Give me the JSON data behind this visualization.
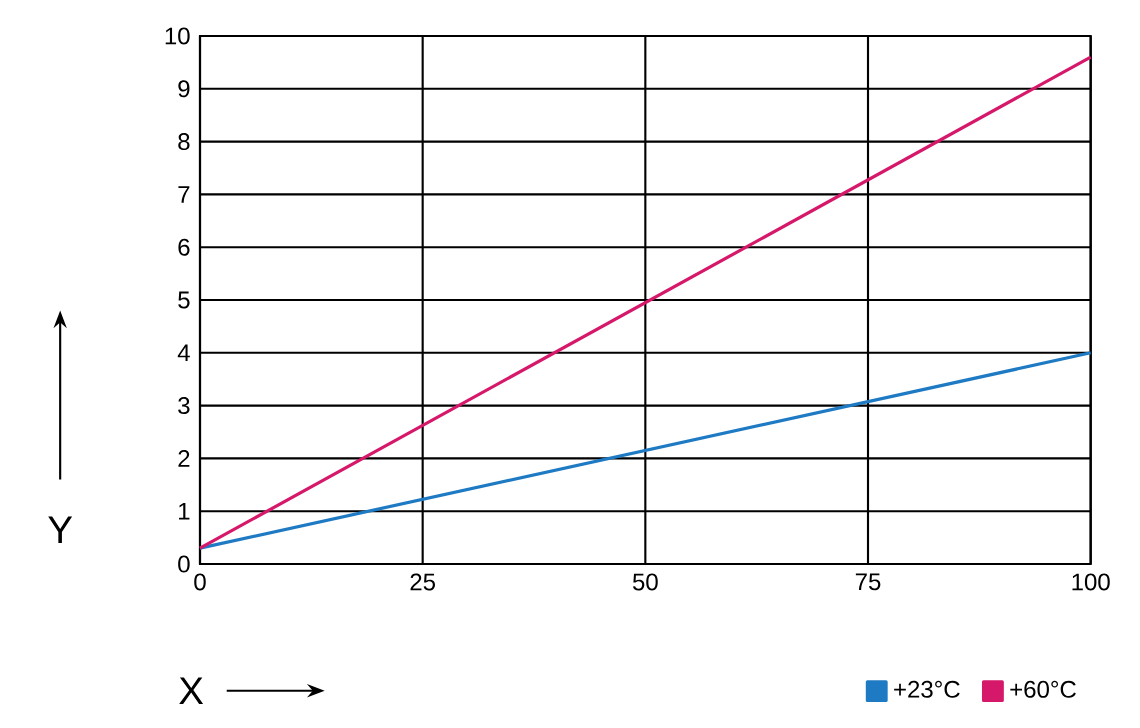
{
  "chart_data": {
    "type": "line",
    "xlabel": "X",
    "ylabel": "Y",
    "x": [
      0,
      100
    ],
    "series": [
      {
        "name": "+23°C",
        "color": "#1f7ac4",
        "values": [
          0.3,
          4
        ]
      },
      {
        "name": "+60°C",
        "color": "#d6186b",
        "values": [
          0.3,
          9.6
        ]
      }
    ],
    "xlim": [
      0,
      100
    ],
    "ylim": [
      0,
      10
    ],
    "xticks": [
      0,
      25,
      50,
      75,
      100
    ],
    "yticks": [
      0,
      1,
      2,
      3,
      4,
      5,
      6,
      7,
      8,
      9,
      10
    ],
    "grid": true,
    "legend": "bottom right",
    "marker": "none",
    "line_style": "solid"
  }
}
